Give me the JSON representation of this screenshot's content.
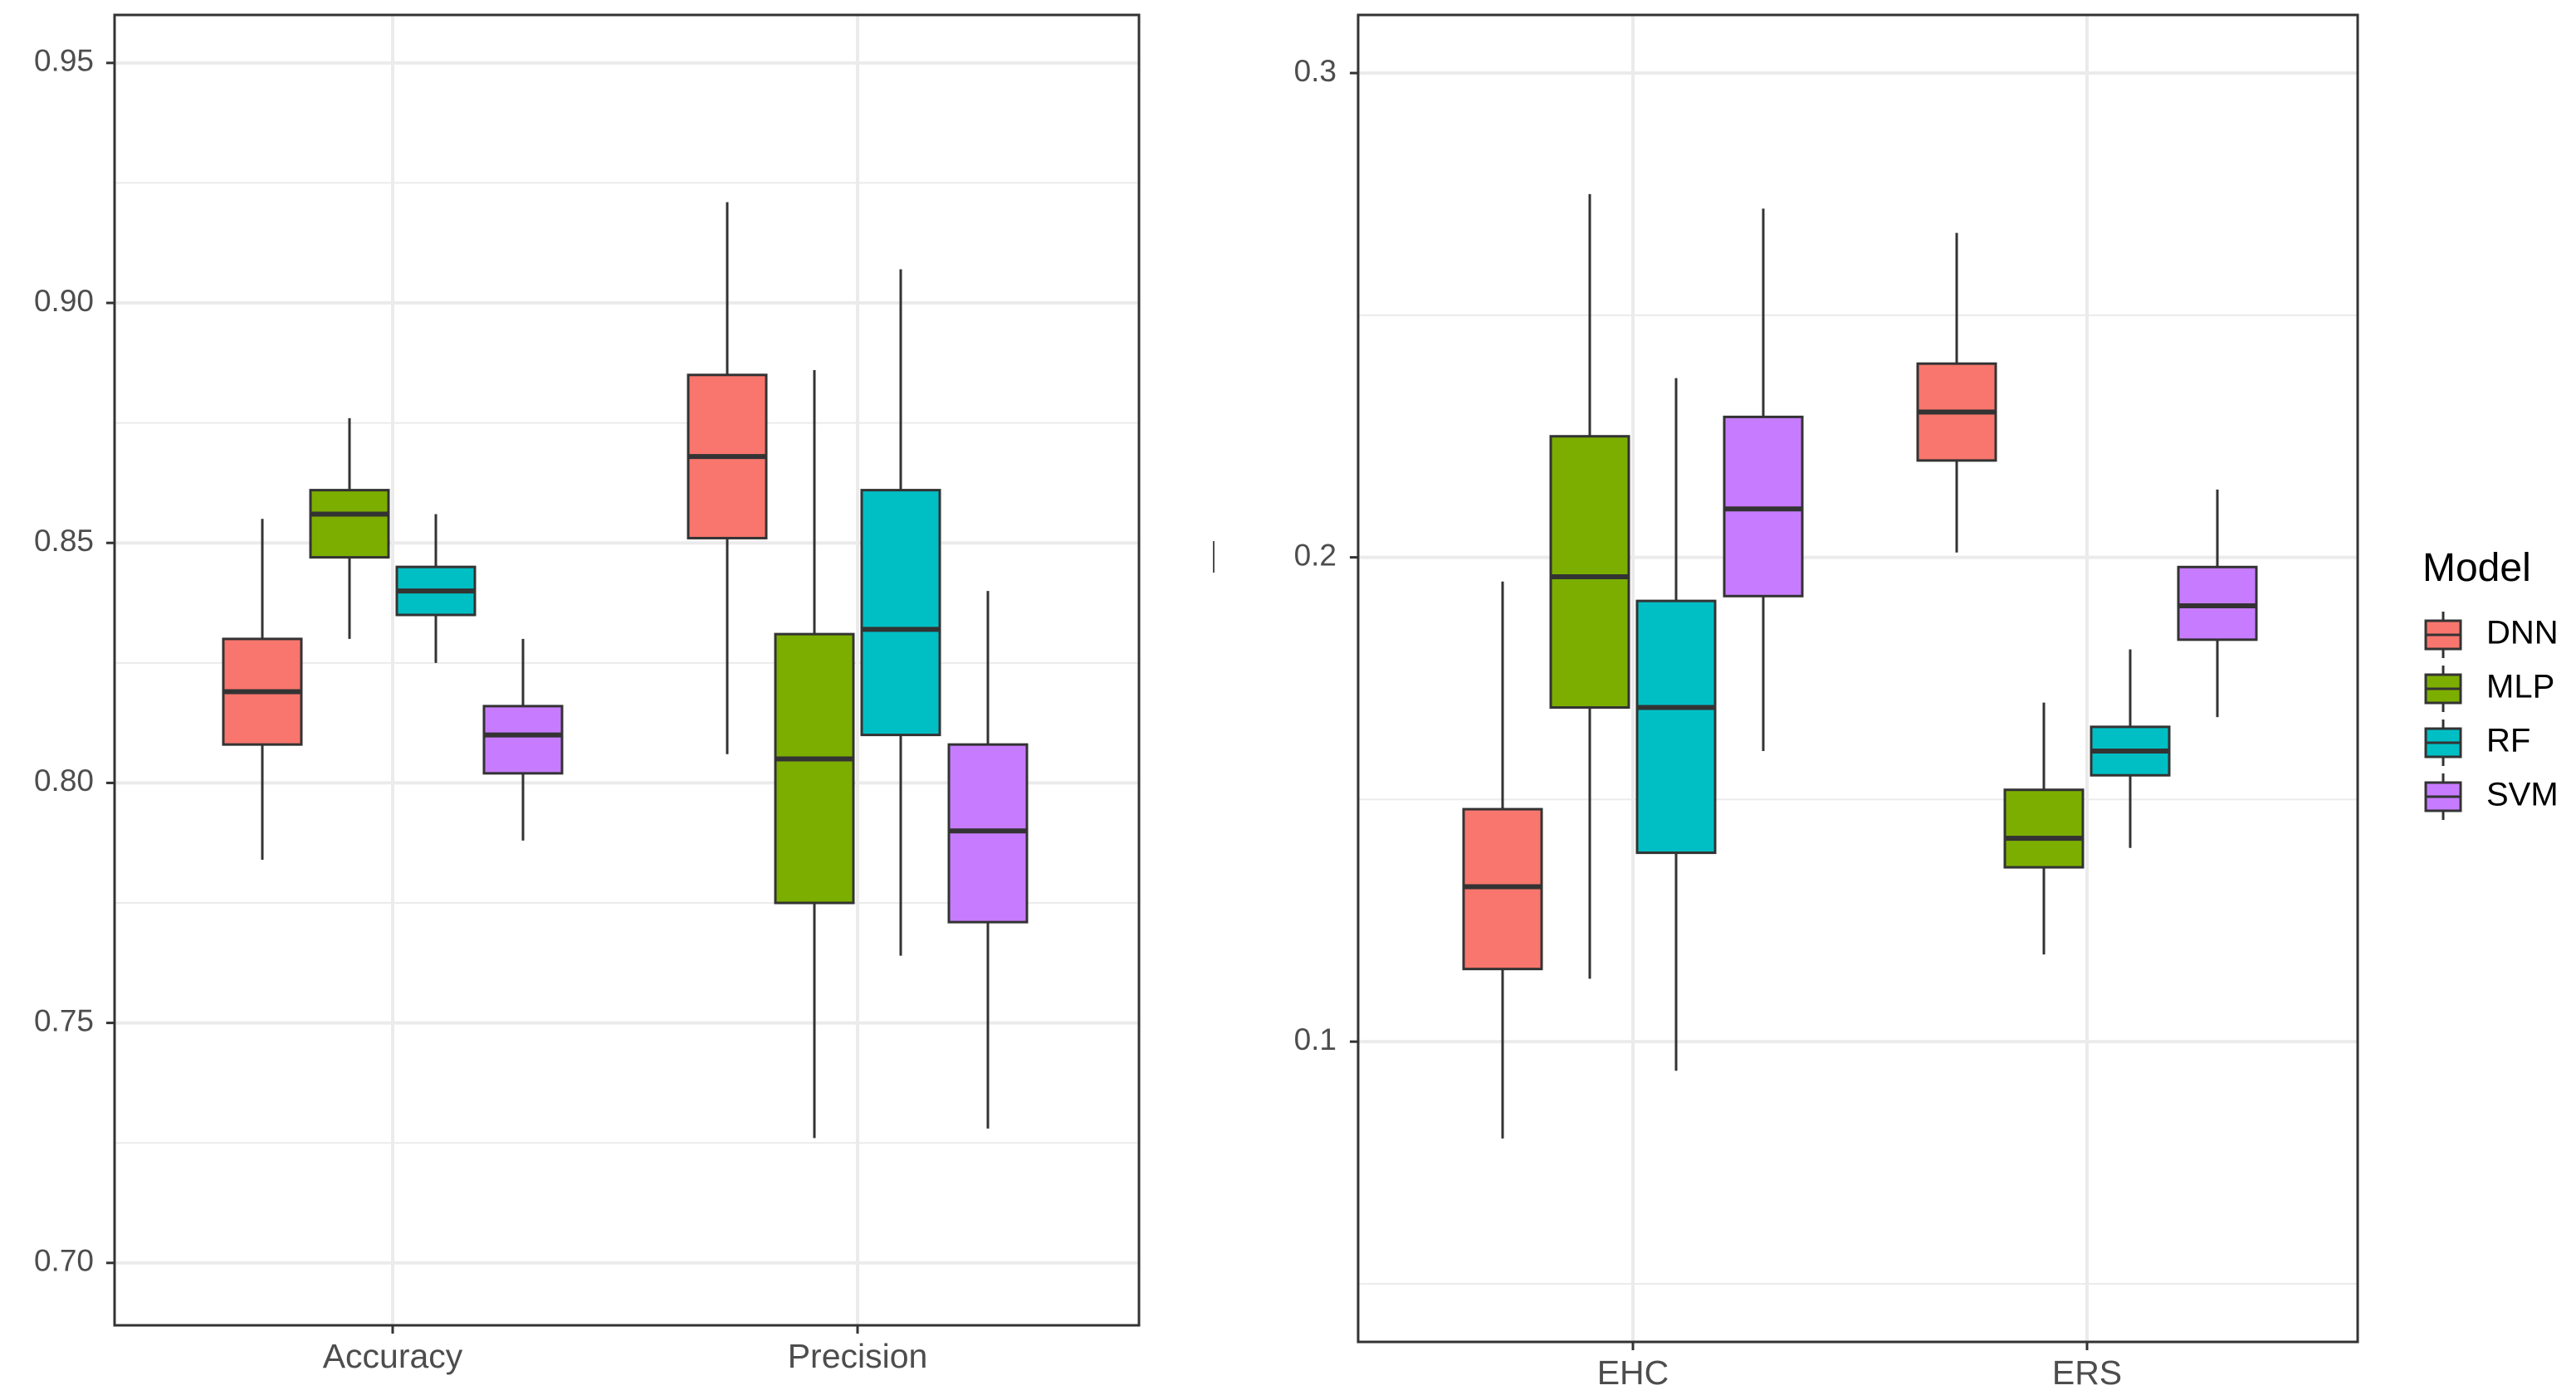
{
  "chart_data": [
    {
      "type": "boxplot",
      "panel": "left",
      "title": "",
      "xlabel": "",
      "ylabel": "",
      "categories": [
        "Accuracy",
        "Precision"
      ],
      "ylim": [
        0.687,
        0.96
      ],
      "yticks": [
        0.7,
        0.75,
        0.8,
        0.85,
        0.9,
        0.95
      ],
      "ytick_labels": [
        "0.70",
        "0.75",
        "0.80",
        "0.85",
        "0.90",
        "0.95"
      ],
      "grid": true,
      "series": [
        {
          "name": "DNN",
          "boxes": [
            {
              "category": "Accuracy",
              "min": 0.784,
              "q1": 0.808,
              "median": 0.819,
              "q3": 0.83,
              "max": 0.855
            },
            {
              "category": "Precision",
              "min": 0.806,
              "q1": 0.851,
              "median": 0.868,
              "q3": 0.885,
              "max": 0.921
            }
          ]
        },
        {
          "name": "MLP",
          "boxes": [
            {
              "category": "Accuracy",
              "min": 0.83,
              "q1": 0.847,
              "median": 0.856,
              "q3": 0.861,
              "max": 0.876
            },
            {
              "category": "Precision",
              "min": 0.726,
              "q1": 0.775,
              "median": 0.805,
              "q3": 0.831,
              "max": 0.886
            }
          ]
        },
        {
          "name": "RF",
          "boxes": [
            {
              "category": "Accuracy",
              "min": 0.825,
              "q1": 0.835,
              "median": 0.84,
              "q3": 0.845,
              "max": 0.856
            },
            {
              "category": "Precision",
              "min": 0.764,
              "q1": 0.81,
              "median": 0.832,
              "q3": 0.861,
              "max": 0.907
            }
          ]
        },
        {
          "name": "SVM",
          "boxes": [
            {
              "category": "Accuracy",
              "min": 0.788,
              "q1": 0.802,
              "median": 0.81,
              "q3": 0.816,
              "max": 0.83
            },
            {
              "category": "Precision",
              "min": 0.728,
              "q1": 0.771,
              "median": 0.79,
              "q3": 0.808,
              "max": 0.84
            }
          ]
        }
      ]
    },
    {
      "type": "boxplot",
      "panel": "right",
      "title": "",
      "xlabel": "",
      "ylabel": "",
      "categories": [
        "EHC",
        "ERS"
      ],
      "ylim": [
        0.038,
        0.312
      ],
      "yticks": [
        0.1,
        0.2,
        0.3
      ],
      "ytick_labels": [
        "0.1",
        "0.2",
        "0.3"
      ],
      "grid": true,
      "series": [
        {
          "name": "DNN",
          "boxes": [
            {
              "category": "EHC",
              "min": 0.08,
              "q1": 0.115,
              "median": 0.132,
              "q3": 0.148,
              "max": 0.195
            },
            {
              "category": "ERS",
              "min": 0.201,
              "q1": 0.22,
              "median": 0.23,
              "q3": 0.24,
              "max": 0.267
            }
          ]
        },
        {
          "name": "MLP",
          "boxes": [
            {
              "category": "EHC",
              "min": 0.113,
              "q1": 0.169,
              "median": 0.196,
              "q3": 0.225,
              "max": 0.275
            },
            {
              "category": "ERS",
              "min": 0.118,
              "q1": 0.136,
              "median": 0.142,
              "q3": 0.152,
              "max": 0.17
            }
          ]
        },
        {
          "name": "RF",
          "boxes": [
            {
              "category": "EHC",
              "min": 0.094,
              "q1": 0.139,
              "median": 0.169,
              "q3": 0.191,
              "max": 0.237
            },
            {
              "category": "ERS",
              "min": 0.14,
              "q1": 0.155,
              "median": 0.16,
              "q3": 0.165,
              "max": 0.181
            }
          ]
        },
        {
          "name": "SVM",
          "boxes": [
            {
              "category": "EHC",
              "min": 0.16,
              "q1": 0.192,
              "median": 0.21,
              "q3": 0.229,
              "max": 0.272
            },
            {
              "category": "ERS",
              "min": 0.167,
              "q1": 0.183,
              "median": 0.19,
              "q3": 0.198,
              "max": 0.214
            }
          ]
        }
      ]
    }
  ],
  "legend": {
    "title": "Model",
    "position": "right",
    "items": [
      {
        "label": "DNN",
        "color": "#F8766D"
      },
      {
        "label": "MLP",
        "color": "#7CAE00"
      },
      {
        "label": "RF",
        "color": "#00BFC4"
      },
      {
        "label": "SVM",
        "color": "#C77CFF"
      }
    ]
  },
  "colors": {
    "DNN": "#F8766D",
    "MLP": "#7CAE00",
    "RF": "#00BFC4",
    "SVM": "#C77CFF",
    "grid": "#EBEBEB",
    "axis_text": "#4D4D4D",
    "box_border": "#333333"
  }
}
